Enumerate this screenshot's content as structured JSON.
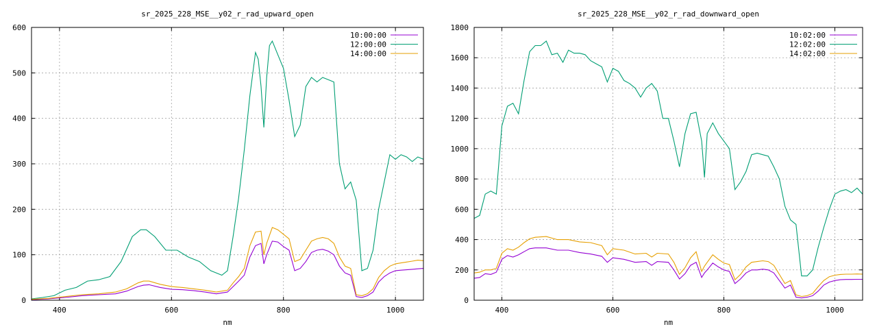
{
  "charts": [
    {
      "type": "line",
      "title": "sr_2025_228_MSE__y02_r_rad_upward_open",
      "xlabel": "nm",
      "ylabel": "",
      "xlim": [
        350,
        1050
      ],
      "ylim": [
        0,
        600
      ],
      "x_ticks": [
        400,
        600,
        800,
        1000
      ],
      "y_ticks": [
        0,
        100,
        200,
        300,
        400,
        500,
        600
      ],
      "grid": true,
      "legend_position": "top-right",
      "series": [
        {
          "name": "10:00:00",
          "color": "#9400d3",
          "x": [
            350,
            380,
            410,
            440,
            470,
            500,
            520,
            540,
            550,
            560,
            580,
            600,
            620,
            640,
            660,
            680,
            700,
            710,
            720,
            730,
            740,
            750,
            760,
            765,
            770,
            780,
            790,
            800,
            810,
            820,
            830,
            840,
            850,
            860,
            870,
            880,
            890,
            900,
            910,
            920,
            930,
            940,
            950,
            960,
            970,
            980,
            990,
            1000,
            1010,
            1020,
            1030,
            1040,
            1050
          ],
          "y": [
            1,
            3,
            6,
            10,
            12,
            14,
            20,
            30,
            33,
            34,
            28,
            24,
            23,
            21,
            18,
            14,
            18,
            30,
            42,
            55,
            95,
            120,
            125,
            80,
            100,
            130,
            128,
            118,
            110,
            65,
            70,
            85,
            105,
            110,
            112,
            108,
            100,
            75,
            60,
            55,
            8,
            6,
            10,
            18,
            40,
            52,
            60,
            65,
            66,
            67,
            68,
            69,
            70
          ]
        },
        {
          "name": "12:00:00",
          "color": "#009e73",
          "x": [
            350,
            370,
            390,
            410,
            430,
            450,
            470,
            490,
            510,
            530,
            545,
            555,
            570,
            590,
            610,
            630,
            650,
            670,
            690,
            700,
            710,
            720,
            730,
            740,
            750,
            755,
            760,
            765,
            770,
            775,
            780,
            790,
            800,
            810,
            820,
            830,
            840,
            850,
            860,
            870,
            880,
            890,
            900,
            910,
            920,
            930,
            940,
            950,
            960,
            970,
            980,
            990,
            1000,
            1010,
            1020,
            1030,
            1040,
            1050
          ],
          "y": [
            3,
            6,
            10,
            22,
            28,
            42,
            45,
            52,
            85,
            140,
            155,
            155,
            140,
            110,
            110,
            95,
            85,
            65,
            55,
            65,
            140,
            225,
            330,
            450,
            545,
            530,
            470,
            380,
            490,
            560,
            570,
            540,
            510,
            440,
            360,
            385,
            470,
            490,
            480,
            490,
            485,
            480,
            300,
            245,
            260,
            220,
            65,
            70,
            110,
            200,
            260,
            320,
            310,
            320,
            315,
            305,
            315,
            310
          ]
        },
        {
          "name": "14:00:00",
          "color": "#e69f00",
          "x": [
            350,
            380,
            410,
            440,
            470,
            500,
            520,
            540,
            550,
            560,
            580,
            600,
            620,
            640,
            660,
            680,
            700,
            710,
            720,
            730,
            740,
            750,
            760,
            765,
            770,
            780,
            790,
            800,
            810,
            820,
            830,
            840,
            850,
            860,
            870,
            880,
            890,
            900,
            910,
            920,
            930,
            940,
            950,
            960,
            970,
            980,
            990,
            1000,
            1010,
            1020,
            1030,
            1040,
            1050
          ],
          "y": [
            2,
            4,
            8,
            12,
            14,
            18,
            25,
            38,
            42,
            42,
            35,
            30,
            28,
            25,
            22,
            18,
            22,
            38,
            52,
            70,
            120,
            150,
            152,
            100,
            125,
            160,
            155,
            145,
            135,
            85,
            90,
            110,
            130,
            135,
            138,
            135,
            125,
            95,
            75,
            70,
            12,
            10,
            14,
            25,
            50,
            65,
            75,
            80,
            82,
            84,
            86,
            88,
            87
          ]
        }
      ]
    },
    {
      "type": "line",
      "title": "sr_2025_228_MSE__y02_r_rad_downward_open",
      "xlabel": "nm",
      "ylabel": "",
      "xlim": [
        350,
        1050
      ],
      "ylim": [
        0,
        1800
      ],
      "x_ticks": [
        400,
        600,
        800,
        1000
      ],
      "y_ticks": [
        0,
        200,
        400,
        600,
        800,
        1000,
        1200,
        1400,
        1600,
        1800
      ],
      "grid": true,
      "legend_position": "top-right",
      "series": [
        {
          "name": "10:02:00",
          "color": "#9400d3",
          "x": [
            350,
            360,
            370,
            380,
            390,
            400,
            410,
            420,
            430,
            440,
            450,
            460,
            480,
            500,
            520,
            540,
            560,
            580,
            590,
            600,
            620,
            640,
            660,
            670,
            680,
            700,
            710,
            720,
            730,
            740,
            750,
            760,
            765,
            770,
            780,
            790,
            800,
            810,
            820,
            830,
            840,
            850,
            860,
            870,
            880,
            890,
            900,
            910,
            920,
            930,
            940,
            950,
            960,
            970,
            980,
            990,
            1000,
            1010,
            1020,
            1030,
            1040,
            1050
          ],
          "y": [
            145,
            150,
            175,
            170,
            185,
            270,
            295,
            285,
            300,
            320,
            340,
            345,
            345,
            330,
            330,
            315,
            305,
            290,
            250,
            280,
            270,
            250,
            255,
            230,
            255,
            250,
            200,
            140,
            175,
            230,
            250,
            150,
            180,
            200,
            245,
            220,
            200,
            190,
            110,
            140,
            180,
            200,
            200,
            205,
            200,
            180,
            130,
            80,
            100,
            20,
            15,
            20,
            30,
            60,
            100,
            120,
            130,
            135,
            137,
            137,
            138,
            138
          ]
        },
        {
          "name": "12:02:00",
          "color": "#009e73",
          "x": [
            350,
            360,
            370,
            380,
            390,
            400,
            410,
            420,
            430,
            440,
            450,
            460,
            470,
            480,
            490,
            500,
            510,
            520,
            530,
            540,
            550,
            560,
            570,
            580,
            590,
            600,
            610,
            620,
            630,
            640,
            650,
            660,
            670,
            680,
            690,
            700,
            710,
            720,
            730,
            740,
            750,
            760,
            765,
            770,
            780,
            790,
            800,
            810,
            820,
            830,
            840,
            850,
            860,
            870,
            880,
            890,
            900,
            910,
            920,
            930,
            940,
            950,
            960,
            970,
            980,
            990,
            1000,
            1010,
            1020,
            1030,
            1040,
            1050
          ],
          "y": [
            540,
            560,
            700,
            720,
            700,
            1150,
            1280,
            1300,
            1230,
            1450,
            1640,
            1680,
            1680,
            1710,
            1620,
            1630,
            1570,
            1650,
            1630,
            1630,
            1620,
            1580,
            1560,
            1540,
            1440,
            1530,
            1510,
            1450,
            1430,
            1400,
            1340,
            1400,
            1430,
            1380,
            1200,
            1200,
            1050,
            880,
            1100,
            1230,
            1240,
            1050,
            810,
            1100,
            1170,
            1100,
            1050,
            1000,
            730,
            780,
            850,
            960,
            970,
            960,
            950,
            880,
            800,
            620,
            530,
            500,
            160,
            160,
            200,
            350,
            480,
            600,
            700,
            720,
            730,
            710,
            740,
            700
          ]
        },
        {
          "name": "14:02:00",
          "color": "#e69f00",
          "x": [
            350,
            360,
            370,
            380,
            390,
            400,
            410,
            420,
            430,
            440,
            450,
            460,
            480,
            500,
            520,
            540,
            560,
            580,
            590,
            600,
            620,
            640,
            660,
            670,
            680,
            700,
            710,
            720,
            730,
            740,
            750,
            760,
            765,
            770,
            780,
            790,
            800,
            810,
            820,
            830,
            840,
            850,
            860,
            870,
            880,
            890,
            900,
            910,
            920,
            930,
            940,
            950,
            960,
            970,
            980,
            990,
            1000,
            1010,
            1020,
            1030,
            1040,
            1050
          ],
          "y": [
            180,
            185,
            200,
            200,
            210,
            310,
            340,
            330,
            350,
            380,
            405,
            415,
            420,
            400,
            400,
            385,
            380,
            360,
            300,
            340,
            330,
            305,
            310,
            285,
            310,
            305,
            250,
            170,
            215,
            280,
            320,
            190,
            225,
            250,
            300,
            270,
            245,
            235,
            135,
            170,
            220,
            250,
            255,
            260,
            255,
            230,
            170,
            110,
            130,
            35,
            25,
            30,
            45,
            90,
            130,
            155,
            165,
            170,
            172,
            172,
            173,
            172
          ]
        }
      ]
    }
  ]
}
